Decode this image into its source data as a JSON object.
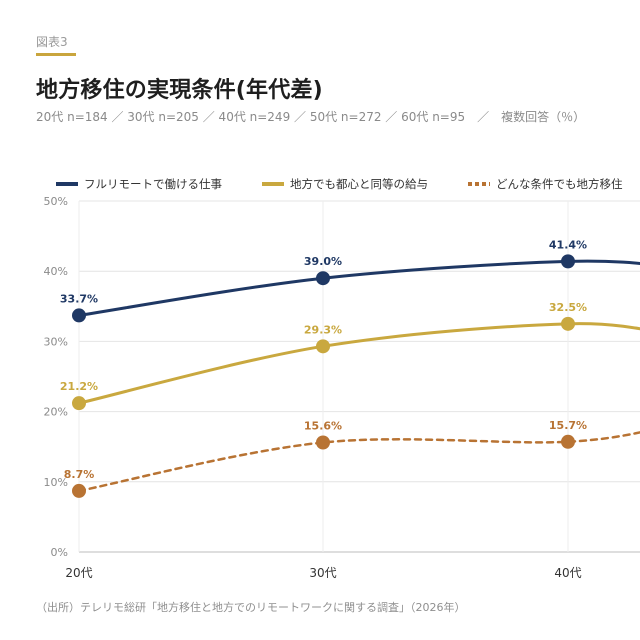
{
  "header": {
    "figure_label": "図表3",
    "title": "地方移住の実現条件(年代差)",
    "subtitle": "20代 n=184 ／ 30代 n=205 ／ 40代 n=249 ／ 50代 n=272 ／ 60代 n=95　／　複数回答（％）"
  },
  "source": "（出所）テレリモ総研「地方移住と地方でのリモートワークに関する調査」（2026年）",
  "chart_data": {
    "type": "line",
    "categories": [
      "20代",
      "30代",
      "40代"
    ],
    "ylim": [
      0,
      50
    ],
    "yticks": [
      "0%",
      "10%",
      "20%",
      "30%",
      "40%",
      "50%"
    ],
    "grid": true,
    "legend_position": "top",
    "series": [
      {
        "name": "フルリモートで働ける仕事",
        "color": "#1f3864",
        "dashed": false,
        "values": [
          33.7,
          39.0,
          41.4
        ],
        "labels": [
          "33.7%",
          "39.0%",
          "41.4%"
        ]
      },
      {
        "name": "地方でも都心と同等の給与",
        "color": "#c9a83f",
        "dashed": false,
        "values": [
          21.2,
          29.3,
          32.5
        ],
        "labels": [
          "21.2%",
          "29.3%",
          "32.5%"
        ]
      },
      {
        "name": "どんな条件でも地方移住",
        "color": "#b87333",
        "dashed": true,
        "values": [
          8.7,
          15.6,
          15.7
        ],
        "labels": [
          "8.7%",
          "15.6%",
          "15.7%"
        ]
      }
    ]
  }
}
